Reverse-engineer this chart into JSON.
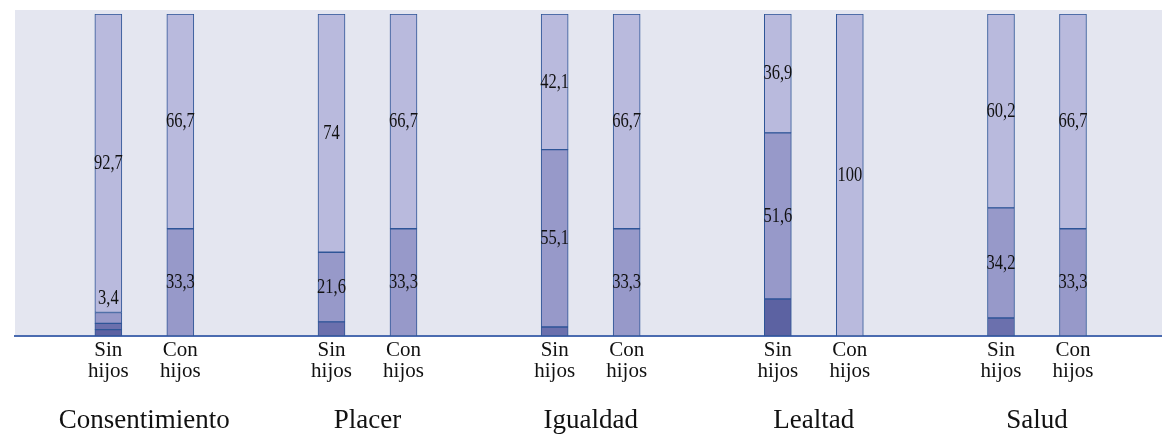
{
  "chart_data": {
    "type": "bar",
    "stacked": true,
    "tick_labels": "x",
    "ylim": [
      0,
      100
    ],
    "categories": [
      "Sin hijos",
      "Con hijos",
      "Sin hijos",
      "Con hijos",
      "Sin hijos",
      "Con hijos",
      "Sin hijos",
      "Con hijos",
      "Sin hijos",
      "Con hijos"
    ],
    "series": [
      {
        "color": "#5c62a2",
        "values": [
          2.0,
          null,
          null,
          null,
          null,
          null,
          11.5,
          null,
          null,
          null
        ],
        "value_labels": [
          null,
          null,
          null,
          null,
          null,
          null,
          null,
          null,
          null,
          null
        ]
      },
      {
        "color": "#6b70ad",
        "values": [
          1.9,
          null,
          4.4,
          null,
          2.8,
          null,
          null,
          null,
          5.6,
          null
        ],
        "value_labels": [
          null,
          null,
          null,
          null,
          null,
          null,
          null,
          null,
          null,
          null
        ]
      },
      {
        "color": "#9799c9",
        "values": [
          3.4,
          33.3,
          21.6,
          33.3,
          55.1,
          33.3,
          51.6,
          null,
          34.2,
          33.3
        ],
        "value_labels": [
          "3,4",
          "33,3",
          "21,6",
          "33,3",
          "55,1",
          "33,3",
          "51,6",
          null,
          "34,2",
          "33,3"
        ]
      },
      {
        "color": "#b9badd",
        "values": [
          92.7,
          66.7,
          74,
          66.7,
          42.1,
          66.7,
          36.9,
          100,
          60.2,
          66.7
        ],
        "value_labels": [
          "92,7",
          "66,7",
          "74",
          "66,7",
          "42,1",
          "66,7",
          "36,9",
          "100",
          "60,2",
          "66,7"
        ]
      }
    ],
    "annotations": [
      "Consentimiento",
      "Placer",
      "Igualdad",
      "Lealtad",
      "Salud"
    ]
  }
}
